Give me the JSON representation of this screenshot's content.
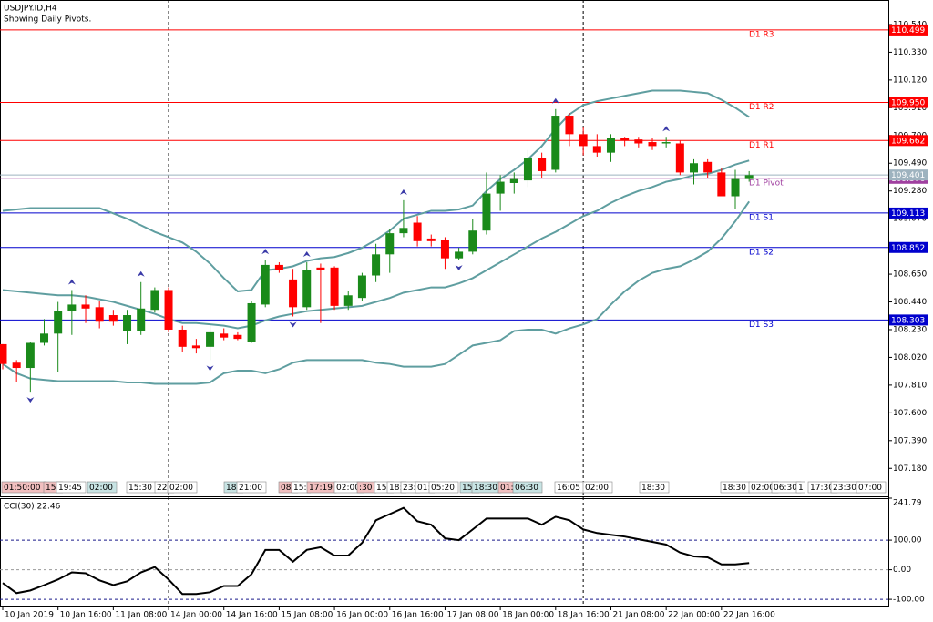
{
  "chart_data": [
    {
      "type": "candlestick",
      "title": "USDJPY.ID,H4",
      "subtitle": "Showing Daily Pivots.",
      "categories": [
        "10 Jan 2019",
        null,
        null,
        null,
        "10 Jan 16:00",
        null,
        null,
        null,
        "11 Jan 08:00",
        null,
        null,
        null,
        "14 Jan 00:00",
        null,
        null,
        null,
        "14 Jan 16:00",
        null,
        null,
        null,
        "15 Jan 08:00",
        null,
        null,
        null,
        "16 Jan 00:00",
        null,
        null,
        null,
        "16 Jan 16:00",
        null,
        null,
        null,
        "17 Jan 08:00",
        null,
        null,
        null,
        "18 Jan 00:00",
        null,
        null,
        null,
        "18 Jan 16:00",
        null,
        null,
        null,
        "21 Jan 08:00",
        null,
        null,
        null,
        "22 Jan 00:00",
        null,
        null,
        null,
        "22 Jan 16:00",
        null,
        null
      ],
      "open": [
        108.12,
        107.98,
        107.94,
        108.13,
        108.2,
        108.37,
        108.42,
        108.4,
        108.34,
        108.22,
        108.22,
        108.38,
        108.53,
        108.23,
        108.11,
        108.1,
        108.2,
        108.19,
        108.14,
        108.42,
        108.72,
        108.61,
        108.4,
        108.7,
        108.7,
        108.41,
        108.47,
        108.64,
        108.8,
        108.96,
        109.04,
        108.92,
        108.91,
        108.77,
        108.82,
        108.98,
        109.26,
        109.34,
        109.36,
        109.53,
        109.44,
        109.85,
        109.71,
        109.62,
        109.57,
        109.68,
        109.67,
        109.65,
        109.64,
        109.64,
        109.42,
        109.5,
        109.42,
        109.24,
        109.37
      ],
      "high": [
        108.12,
        108.0,
        108.14,
        108.31,
        108.44,
        108.53,
        108.49,
        108.45,
        108.38,
        108.38,
        108.59,
        108.55,
        108.55,
        108.26,
        108.16,
        108.26,
        108.24,
        108.21,
        108.45,
        108.76,
        108.74,
        108.69,
        108.74,
        108.73,
        108.71,
        108.52,
        108.66,
        108.88,
        108.99,
        109.21,
        109.09,
        108.95,
        108.93,
        108.85,
        109.07,
        109.42,
        109.4,
        109.42,
        109.59,
        109.57,
        109.9,
        109.87,
        109.76,
        109.71,
        109.71,
        109.69,
        109.69,
        109.68,
        109.69,
        109.66,
        109.52,
        109.52,
        109.45,
        109.44,
        109.43
      ],
      "low": [
        107.93,
        107.83,
        107.76,
        108.11,
        107.91,
        108.19,
        108.28,
        108.24,
        108.26,
        108.12,
        108.19,
        108.36,
        108.21,
        108.06,
        108.05,
        108.0,
        108.15,
        108.15,
        108.13,
        108.4,
        108.66,
        108.33,
        108.38,
        108.28,
        108.38,
        108.38,
        108.45,
        108.59,
        108.66,
        108.93,
        108.86,
        108.86,
        108.69,
        108.76,
        108.8,
        108.95,
        109.13,
        109.26,
        109.31,
        109.38,
        109.42,
        109.62,
        109.55,
        109.54,
        109.5,
        109.62,
        109.61,
        109.59,
        109.61,
        109.4,
        109.33,
        109.38,
        109.24,
        109.14,
        109.35
      ],
      "close": [
        107.97,
        107.94,
        108.13,
        108.2,
        108.37,
        108.42,
        108.39,
        108.29,
        108.29,
        108.34,
        108.39,
        108.53,
        108.23,
        108.1,
        108.09,
        108.21,
        108.17,
        108.16,
        108.43,
        108.72,
        108.68,
        108.4,
        108.68,
        108.68,
        108.41,
        108.49,
        108.64,
        108.8,
        108.96,
        109.0,
        108.9,
        108.9,
        108.77,
        108.82,
        108.98,
        109.26,
        109.35,
        109.37,
        109.53,
        109.43,
        109.85,
        109.71,
        109.62,
        109.57,
        109.68,
        109.66,
        109.64,
        109.62,
        109.65,
        109.42,
        109.49,
        109.42,
        109.24,
        109.37,
        109.4
      ],
      "up_color": "#1a8a1a",
      "down_color": "#ff0000",
      "bands": {
        "color": "#5f9ea0",
        "upper": [
          109.13,
          109.14,
          109.15,
          109.15,
          109.15,
          109.15,
          109.15,
          109.15,
          109.11,
          109.07,
          109.02,
          108.97,
          108.93,
          108.89,
          108.82,
          108.73,
          108.62,
          108.52,
          108.53,
          108.68,
          108.69,
          108.71,
          108.75,
          108.77,
          108.78,
          108.81,
          108.85,
          108.91,
          108.98,
          109.07,
          109.1,
          109.13,
          109.13,
          109.14,
          109.17,
          109.28,
          109.37,
          109.44,
          109.52,
          109.62,
          109.75,
          109.86,
          109.93,
          109.96,
          109.98,
          110.0,
          110.02,
          110.04,
          110.04,
          110.04,
          110.03,
          110.02,
          109.97,
          109.91,
          109.84
        ],
        "middle": [
          108.53,
          108.52,
          108.51,
          108.5,
          108.49,
          108.49,
          108.48,
          108.46,
          108.44,
          108.41,
          108.38,
          108.35,
          108.31,
          108.28,
          108.28,
          108.27,
          108.26,
          108.24,
          108.26,
          108.3,
          108.33,
          108.35,
          108.37,
          108.38,
          108.39,
          108.4,
          108.41,
          108.44,
          108.47,
          108.51,
          108.53,
          108.55,
          108.55,
          108.58,
          108.62,
          108.68,
          108.74,
          108.8,
          108.86,
          108.92,
          108.97,
          109.03,
          109.09,
          109.13,
          109.19,
          109.24,
          109.28,
          109.31,
          109.35,
          109.37,
          109.4,
          109.41,
          109.44,
          109.48,
          109.51
        ],
        "lower": [
          107.97,
          107.9,
          107.86,
          107.85,
          107.84,
          107.84,
          107.84,
          107.84,
          107.84,
          107.83,
          107.83,
          107.82,
          107.82,
          107.82,
          107.82,
          107.83,
          107.9,
          107.92,
          107.92,
          107.9,
          107.93,
          107.98,
          108.0,
          108.0,
          108.0,
          108.0,
          108.0,
          107.98,
          107.97,
          107.95,
          107.95,
          107.95,
          107.97,
          108.04,
          108.11,
          108.13,
          108.15,
          108.22,
          108.23,
          108.23,
          108.2,
          108.24,
          108.27,
          108.31,
          108.42,
          108.52,
          108.6,
          108.66,
          108.69,
          108.71,
          108.76,
          108.82,
          108.92,
          109.05,
          109.2
        ]
      },
      "fractals": {
        "color": "#3a3aa8",
        "up": [
          null,
          null,
          null,
          null,
          null,
          108.53,
          null,
          null,
          null,
          null,
          108.59,
          null,
          null,
          null,
          null,
          null,
          null,
          null,
          null,
          108.76,
          null,
          null,
          108.74,
          null,
          null,
          null,
          null,
          null,
          null,
          109.21,
          null,
          null,
          null,
          null,
          null,
          null,
          null,
          null,
          null,
          null,
          109.9,
          null,
          null,
          null,
          null,
          null,
          null,
          null,
          109.69,
          null,
          null,
          null,
          null,
          null,
          null
        ],
        "down": [
          null,
          null,
          107.76,
          null,
          null,
          null,
          null,
          null,
          null,
          null,
          null,
          null,
          null,
          null,
          null,
          108.0,
          null,
          null,
          null,
          null,
          null,
          108.33,
          null,
          null,
          null,
          null,
          null,
          null,
          null,
          null,
          null,
          null,
          null,
          108.76,
          null,
          null,
          null,
          null,
          null,
          null,
          null,
          null,
          null,
          null,
          null,
          null,
          null,
          null,
          null,
          null,
          null,
          null,
          null,
          null,
          null
        ]
      },
      "pivots": [
        {
          "name": "D1 R3",
          "value": 110.499,
          "color": "#ff0000"
        },
        {
          "name": "D1 R2",
          "value": 109.95,
          "value_label": "109.950",
          "color": "#ff0000"
        },
        {
          "name": "D1 R1",
          "value": 109.662,
          "color": "#ff0000"
        },
        {
          "name": "D1 Pivot",
          "value": 109.376,
          "color": "#a040a0"
        },
        {
          "name": "D1 S1",
          "value": 109.113,
          "color": "#0000cd"
        },
        {
          "name": "D1 S2",
          "value": 108.852,
          "color": "#0000cd"
        },
        {
          "name": "D1 S3",
          "value": 108.303,
          "color": "#0000cd"
        }
      ],
      "last_price": {
        "value": 109.401,
        "color": "#9eb3bf"
      },
      "time_tags": [
        {
          "text": "01:50:00",
          "color": "#f2c0c0"
        },
        {
          "text": "15:",
          "color": "#f2c0c0"
        },
        {
          "text": "19:45",
          "color": "#ffffff"
        },
        {
          "text": "02:00",
          "color": "#c8e4e4"
        },
        {
          "text": "15:30",
          "color": "#ffffff"
        },
        {
          "text": "22:",
          "color": "#ffffff"
        },
        {
          "text": "02:00",
          "color": "#ffffff"
        },
        {
          "text": "18:",
          "color": "#c8e4e4"
        },
        {
          "text": "21:00",
          "color": "#ffffff"
        },
        {
          "text": "08:",
          "color": "#f2c0c0"
        },
        {
          "text": "15:",
          "color": "#ffffff"
        },
        {
          "text": "17:19",
          "color": "#f2c0c0"
        },
        {
          "text": "02:00",
          "color": "#ffffff"
        },
        {
          "text": ":30",
          "color": "#f2c0c0"
        },
        {
          "text": "15:",
          "color": "#ffffff"
        },
        {
          "text": "18:",
          "color": "#ffffff"
        },
        {
          "text": "23:",
          "color": "#ffffff"
        },
        {
          "text": "01:",
          "color": "#ffffff"
        },
        {
          "text": "05:20",
          "color": "#ffffff"
        },
        {
          "text": "15:",
          "color": "#c8e4e4"
        },
        {
          "text": "18:30",
          "color": "#c8e4e4"
        },
        {
          "text": "01:",
          "color": "#f2c0c0"
        },
        {
          "text": "06:30",
          "color": "#c8e4e4"
        },
        {
          "text": "16:05",
          "color": "#ffffff"
        },
        {
          "text": "02:00",
          "color": "#ffffff"
        },
        {
          "text": "18:30",
          "color": "#ffffff"
        },
        {
          "text": "18:30",
          "color": "#ffffff"
        },
        {
          "text": "02:00",
          "color": "#ffffff"
        },
        {
          "text": "06:30",
          "color": "#ffffff"
        },
        {
          "text": "1",
          "color": "#ffffff"
        },
        {
          "text": "17:30",
          "color": "#ffffff"
        },
        {
          "text": "23:30",
          "color": "#ffffff"
        },
        {
          "text": "07:00",
          "color": "#ffffff"
        }
      ],
      "ylim": [
        106.968,
        110.726
      ],
      "yticks": [
        {
          "value": 110.54,
          "label": "110.540"
        },
        {
          "value": 110.33,
          "label": "110.330"
        },
        {
          "value": 110.12,
          "label": "110.120"
        },
        {
          "value": 109.91,
          "label": "109.910"
        },
        {
          "value": 109.7,
          "label": "109.700"
        },
        {
          "value": 109.49,
          "label": "109.490"
        },
        {
          "value": 109.28,
          "label": "109.280"
        },
        {
          "value": 109.07,
          "label": "109.070"
        },
        {
          "value": 108.86,
          "label": "108.860"
        },
        {
          "value": 108.65,
          "label": "108.650"
        },
        {
          "value": 108.44,
          "label": "108.440"
        },
        {
          "value": 108.23,
          "label": "108.230"
        },
        {
          "value": 108.02,
          "label": "108.020"
        },
        {
          "value": 107.81,
          "label": "107.810"
        },
        {
          "value": 107.6,
          "label": "107.600"
        },
        {
          "value": 107.39,
          "label": "107.390"
        },
        {
          "value": 107.18,
          "label": "107.180"
        }
      ]
    },
    {
      "type": "line",
      "title": "CCI(30) 22.46",
      "values": [
        -45,
        -79,
        -70,
        -52,
        -33,
        -9,
        -12,
        -36,
        -52,
        -39,
        -9,
        9,
        -33,
        -82,
        -82,
        -76,
        -55,
        -55,
        -15,
        67,
        67,
        27,
        67,
        76,
        48,
        48,
        91,
        167,
        188,
        209,
        164,
        152,
        106,
        100,
        136,
        173,
        173,
        173,
        173,
        152,
        179,
        167,
        136,
        124,
        118,
        112,
        103,
        94,
        85,
        58,
        45,
        42,
        18,
        18,
        22.46
      ],
      "color": "#000000",
      "ylim": [
        -121.2,
        241.79
      ],
      "yticks": [
        241.79,
        {
          "value": 100,
          "label": "100.00"
        },
        {
          "value": 0,
          "label": "0.00"
        },
        {
          "value": -100,
          "label": "-100.00"
        }
      ],
      "grid": true
    }
  ]
}
